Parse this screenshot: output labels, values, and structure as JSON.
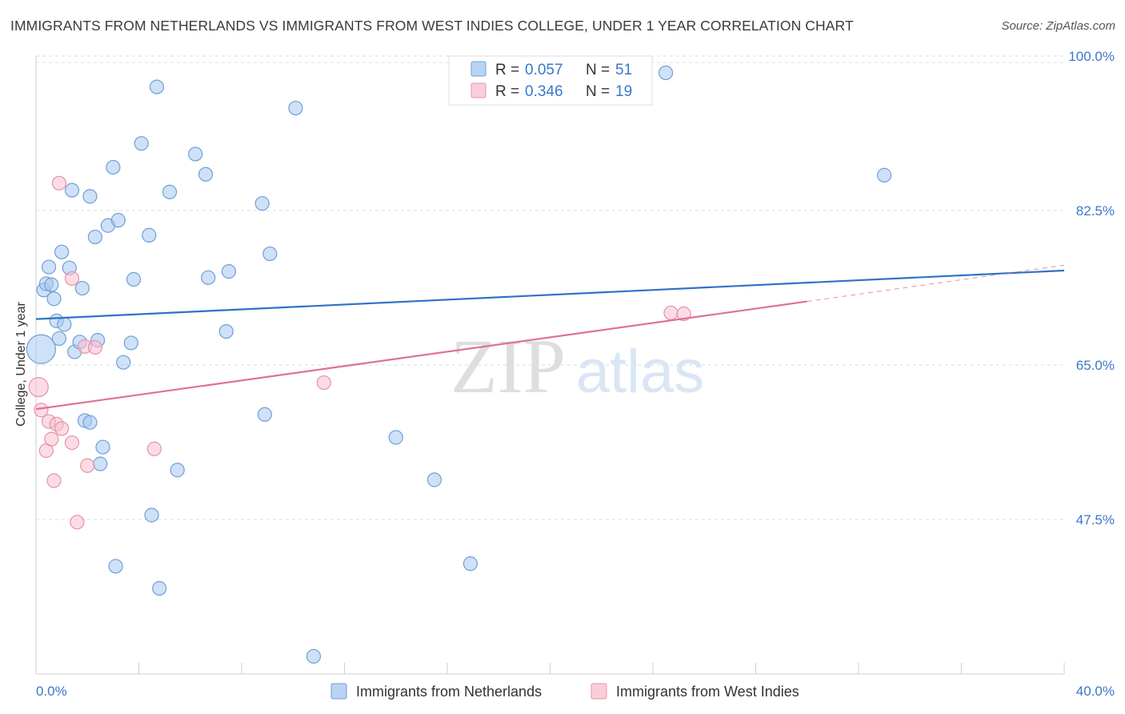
{
  "title": "IMMIGRANTS FROM NETHERLANDS VS IMMIGRANTS FROM WEST INDIES COLLEGE, UNDER 1 YEAR CORRELATION CHART",
  "source": "Source: ZipAtlas.com",
  "watermark": {
    "zip": "ZIP",
    "atlas": "atlas"
  },
  "legend_top": [
    {
      "r_label": "R = ",
      "r_value": "0.057",
      "n_label": "N = ",
      "n_value": "51"
    },
    {
      "r_label": "R = ",
      "r_value": "0.346",
      "n_label": "N = ",
      "n_value": "19"
    }
  ],
  "chart_data": {
    "type": "scatter",
    "title": "IMMIGRANTS FROM NETHERLANDS VS IMMIGRANTS FROM WEST INDIES COLLEGE, UNDER 1 YEAR CORRELATION CHART",
    "xlabel": "",
    "ylabel": "College, Under 1 year",
    "xlim": [
      0,
      40
    ],
    "ylim": [
      30,
      100
    ],
    "x_tick_labels": [
      "0.0%",
      "40.0%"
    ],
    "y_ticks": [
      47.5,
      65.0,
      82.5,
      100.0
    ],
    "y_tick_labels": [
      "47.5%",
      "65.0%",
      "82.5%",
      "100.0%"
    ],
    "grid": true,
    "legend_position": "top-center",
    "series": [
      {
        "name": "Immigrants from Netherlands",
        "color": "#a8c8f0",
        "edge_color": "#6f9fd8",
        "line_color": "#2f72c8",
        "trend": {
          "x": [
            0,
            40
          ],
          "y": [
            70.2,
            75.7
          ]
        },
        "points": [
          [
            0.2,
            66.8
          ],
          [
            0.3,
            73.5
          ],
          [
            0.4,
            74.2
          ],
          [
            0.5,
            76.1
          ],
          [
            0.6,
            74.1
          ],
          [
            0.7,
            72.5
          ],
          [
            0.8,
            70.0
          ],
          [
            0.9,
            68.0
          ],
          [
            1.0,
            77.8
          ],
          [
            1.1,
            69.6
          ],
          [
            1.3,
            76.0
          ],
          [
            1.4,
            84.8
          ],
          [
            1.5,
            66.5
          ],
          [
            1.7,
            67.6
          ],
          [
            1.8,
            73.7
          ],
          [
            1.9,
            58.7
          ],
          [
            2.1,
            58.5
          ],
          [
            2.1,
            84.1
          ],
          [
            2.3,
            79.5
          ],
          [
            2.4,
            67.8
          ],
          [
            2.5,
            53.8
          ],
          [
            2.6,
            55.7
          ],
          [
            2.8,
            80.8
          ],
          [
            3.0,
            87.4
          ],
          [
            3.1,
            42.2
          ],
          [
            3.2,
            81.4
          ],
          [
            3.4,
            65.3
          ],
          [
            3.7,
            67.5
          ],
          [
            3.8,
            74.7
          ],
          [
            4.1,
            90.1
          ],
          [
            4.4,
            79.7
          ],
          [
            4.5,
            48.0
          ],
          [
            4.7,
            96.5
          ],
          [
            4.8,
            39.7
          ],
          [
            5.2,
            84.6
          ],
          [
            5.5,
            53.1
          ],
          [
            6.2,
            88.9
          ],
          [
            6.6,
            86.6
          ],
          [
            6.7,
            74.9
          ],
          [
            7.4,
            68.8
          ],
          [
            7.5,
            75.6
          ],
          [
            8.8,
            83.3
          ],
          [
            8.9,
            59.4
          ],
          [
            9.1,
            77.6
          ],
          [
            10.1,
            94.1
          ],
          [
            10.8,
            32.0
          ],
          [
            14.0,
            56.8
          ],
          [
            15.5,
            52.0
          ],
          [
            16.9,
            42.5
          ],
          [
            24.5,
            98.1
          ],
          [
            33.0,
            86.5
          ]
        ]
      },
      {
        "name": "Immigrants from West Indies",
        "color": "#f8c0d0",
        "edge_color": "#e891a8",
        "line_color": "#e07098",
        "trend": {
          "x": [
            0,
            30
          ],
          "y": [
            60.0,
            72.2
          ]
        },
        "trend_extension": {
          "x": [
            30,
            40
          ],
          "y": [
            72.2,
            76.3
          ]
        },
        "points": [
          [
            0.1,
            62.5
          ],
          [
            0.2,
            59.9
          ],
          [
            0.4,
            55.3
          ],
          [
            0.5,
            58.6
          ],
          [
            0.6,
            56.6
          ],
          [
            0.7,
            51.9
          ],
          [
            0.8,
            58.3
          ],
          [
            0.9,
            85.6
          ],
          [
            1.0,
            57.8
          ],
          [
            1.4,
            56.2
          ],
          [
            1.4,
            74.8
          ],
          [
            1.6,
            47.2
          ],
          [
            1.9,
            67.1
          ],
          [
            2.0,
            53.6
          ],
          [
            2.3,
            67.0
          ],
          [
            4.6,
            55.5
          ],
          [
            11.2,
            63.0
          ],
          [
            24.7,
            70.9
          ],
          [
            25.2,
            70.8
          ]
        ]
      }
    ]
  }
}
